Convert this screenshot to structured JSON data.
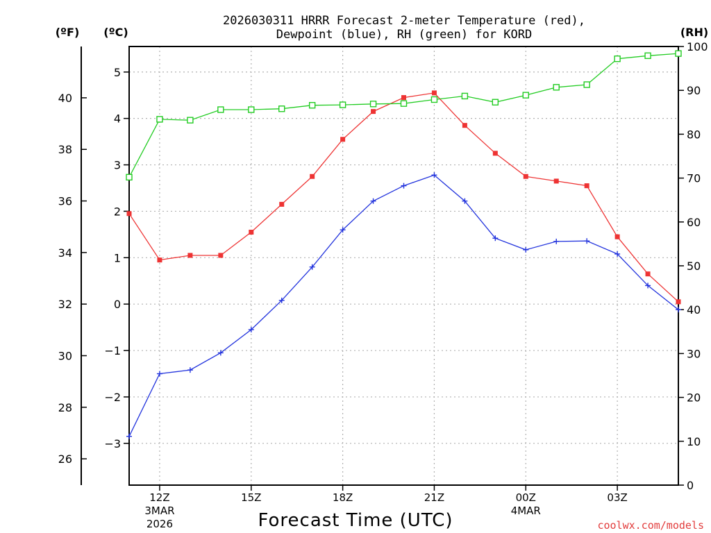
{
  "chart_data": {
    "type": "line",
    "title_line1": "2026030311 HRRR Forecast 2-meter Temperature (red),",
    "title_line2": "Dewpoint (blue), RH (green) for KORD",
    "xlabel": "Forecast Time (UTC)",
    "credit": "coolwx.com/models",
    "units": {
      "fahrenheit": "(ºF)",
      "celsius": "(ºC)",
      "rh": "(RH)"
    },
    "x_hours": [
      11,
      12,
      13,
      14,
      15,
      16,
      17,
      18,
      19,
      20,
      21,
      22,
      23,
      24,
      25,
      26,
      27,
      28,
      29
    ],
    "xlim": [
      11,
      29
    ],
    "x_ticks": [
      {
        "hour": 12,
        "label": "12Z",
        "sub1": "3MAR",
        "sub2": "2026"
      },
      {
        "hour": 15,
        "label": "15Z",
        "sub1": "",
        "sub2": ""
      },
      {
        "hour": 18,
        "label": "18Z",
        "sub1": "",
        "sub2": ""
      },
      {
        "hour": 21,
        "label": "21Z",
        "sub1": "",
        "sub2": ""
      },
      {
        "hour": 24,
        "label": "00Z",
        "sub1": "4MAR",
        "sub2": ""
      },
      {
        "hour": 27,
        "label": "03Z",
        "sub1": "",
        "sub2": ""
      }
    ],
    "y_celsius": {
      "min": -3.9,
      "max": 5.55,
      "ticks": [
        -3,
        -2,
        -1,
        0,
        1,
        2,
        3,
        4,
        5
      ]
    },
    "y_fahrenheit": {
      "ticks": [
        26,
        28,
        30,
        32,
        34,
        36,
        38,
        40
      ]
    },
    "y_rh": {
      "min": 0,
      "max": 100,
      "ticks": [
        0,
        10,
        20,
        30,
        40,
        50,
        60,
        70,
        80,
        90,
        100
      ]
    },
    "series": [
      {
        "name": "2-meter Temperature",
        "axis": "celsius",
        "color": "#ee3333",
        "marker": "filled-square",
        "values": [
          1.95,
          0.95,
          1.05,
          1.05,
          1.55,
          2.15,
          2.75,
          3.55,
          4.15,
          4.45,
          4.55,
          3.85,
          3.25,
          2.75,
          2.65,
          2.55,
          1.45,
          0.65,
          0.05
        ]
      },
      {
        "name": "Dewpoint",
        "axis": "celsius",
        "color": "#2233dd",
        "marker": "plus",
        "values": [
          -2.85,
          -1.5,
          -1.42,
          -1.05,
          -0.55,
          0.08,
          0.8,
          1.6,
          2.22,
          2.55,
          2.78,
          2.22,
          1.42,
          1.17,
          1.35,
          1.36,
          1.08,
          0.4,
          -0.12
        ]
      },
      {
        "name": "Relative Humidity",
        "axis": "rh",
        "color": "#22cc22",
        "marker": "open-square",
        "values": [
          70.2,
          83.4,
          83.2,
          85.6,
          85.6,
          85.8,
          86.6,
          86.7,
          86.9,
          87.0,
          87.9,
          88.7,
          87.3,
          88.9,
          90.7,
          91.3,
          97.2,
          97.9,
          98.4
        ]
      }
    ]
  }
}
